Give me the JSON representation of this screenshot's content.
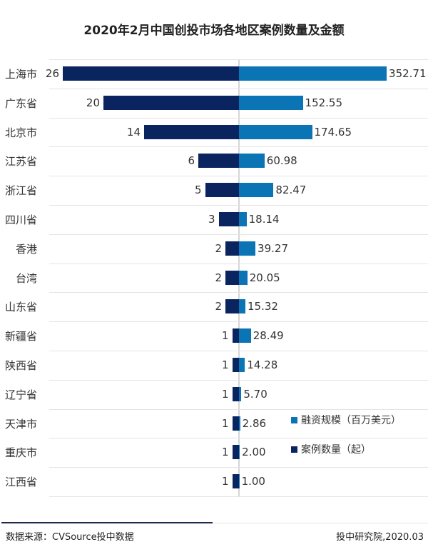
{
  "title": "2020年2月中国创投市场各地区案例数量及金额",
  "colors": {
    "cases": "#0a2460",
    "amount": "#0a74b5",
    "gridline": "#e4e4e4",
    "axis": "#d6d6d6"
  },
  "legend": {
    "amount_label": "融资规模（百万美元）",
    "cases_label": "案例数量（起）"
  },
  "footer": {
    "source": "数据来源：CVSource投中数据",
    "credit": "投中研究院,2020.03"
  },
  "rows": [
    {
      "region": "上海市",
      "cases": "26",
      "amount": "352.71"
    },
    {
      "region": "广东省",
      "cases": "20",
      "amount": "152.55"
    },
    {
      "region": "北京市",
      "cases": "14",
      "amount": "174.65"
    },
    {
      "region": "江苏省",
      "cases": "6",
      "amount": "60.98"
    },
    {
      "region": "浙江省",
      "cases": "5",
      "amount": "82.47"
    },
    {
      "region": "四川省",
      "cases": "3",
      "amount": "18.14"
    },
    {
      "region": "香港",
      "cases": "2",
      "amount": "39.27"
    },
    {
      "region": "台湾",
      "cases": "2",
      "amount": "20.05"
    },
    {
      "region": "山东省",
      "cases": "2",
      "amount": "15.32"
    },
    {
      "region": "新疆省",
      "cases": "1",
      "amount": "28.49"
    },
    {
      "region": "陕西省",
      "cases": "1",
      "amount": "14.28"
    },
    {
      "region": "辽宁省",
      "cases": "1",
      "amount": "5.70"
    },
    {
      "region": "天津市",
      "cases": "1",
      "amount": "2.86"
    },
    {
      "region": "重庆市",
      "cases": "1",
      "amount": "2.00"
    },
    {
      "region": "江西省",
      "cases": "1",
      "amount": "1.00"
    }
  ],
  "chart_data": {
    "type": "bar",
    "orientation": "horizontal-diverging",
    "title": "2020年2月中国创投市场各地区案例数量及金额",
    "categories": [
      "上海市",
      "广东省",
      "北京市",
      "江苏省",
      "浙江省",
      "四川省",
      "香港",
      "台湾",
      "山东省",
      "新疆省",
      "陕西省",
      "辽宁省",
      "天津市",
      "重庆市",
      "江西省"
    ],
    "series": [
      {
        "name": "案例数量（起）",
        "side": "left",
        "color": "#0a2460",
        "values": [
          26,
          20,
          14,
          6,
          5,
          3,
          2,
          2,
          2,
          1,
          1,
          1,
          1,
          1,
          1
        ]
      },
      {
        "name": "融资规模（百万美元）",
        "side": "right",
        "color": "#0a74b5",
        "values": [
          352.71,
          152.55,
          174.65,
          60.98,
          82.47,
          18.14,
          39.27,
          20.05,
          15.32,
          28.49,
          14.28,
          5.7,
          2.86,
          2.0,
          1.0
        ]
      }
    ],
    "xlabel": "",
    "ylabel": "",
    "grid": true,
    "data_labels": true,
    "legend_position": "lower-right inside",
    "source": "数据来源：CVSource投中数据",
    "credit": "投中研究院,2020.03"
  }
}
